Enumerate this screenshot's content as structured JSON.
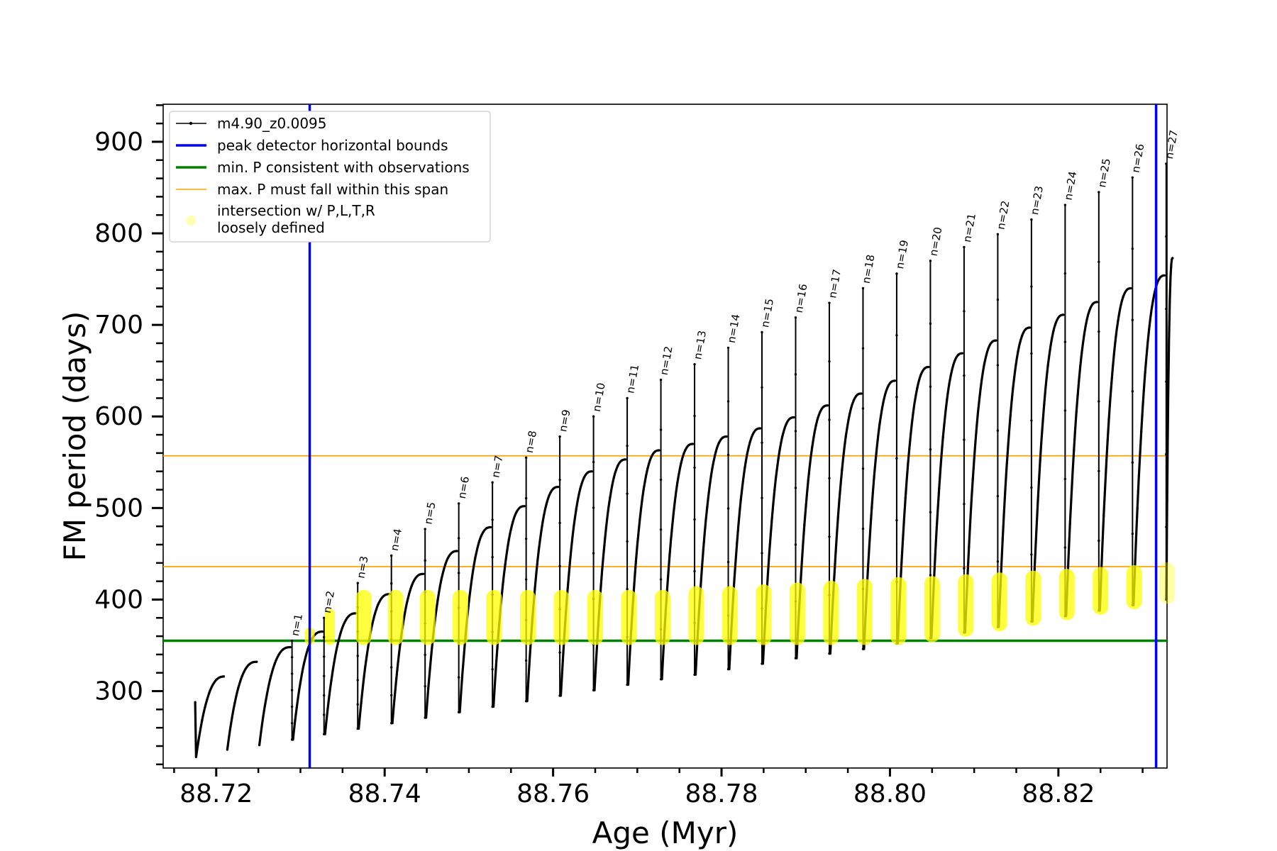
{
  "chart_data": {
    "type": "line",
    "xlabel": "Age (Myr)",
    "ylabel": "FM period (days)",
    "xlim": [
      88.7137,
      88.8329
    ],
    "ylim": [
      216,
      941
    ],
    "xticks": [
      88.72,
      88.74,
      88.76,
      88.78,
      88.8,
      88.82
    ],
    "xtick_labels": [
      "88.72",
      "88.74",
      "88.76",
      "88.78",
      "88.80",
      "88.82"
    ],
    "yticks": [
      300,
      400,
      500,
      600,
      700,
      800,
      900
    ],
    "ytick_labels": [
      "300",
      "400",
      "500",
      "600",
      "700",
      "800",
      "900"
    ],
    "legend_position": "upper-left",
    "legend": [
      {
        "label": "m4.90_z0.0095",
        "color": "#000000",
        "kind": "line-marker"
      },
      {
        "label": "peak detector horizontal bounds",
        "color": "#0000ff",
        "kind": "line"
      },
      {
        "label": "min. P consistent with observations",
        "color": "#008000",
        "kind": "line"
      },
      {
        "label": "max. P must fall within this span",
        "color": "#ffa500",
        "kind": "thin-line"
      },
      {
        "label": "intersection w/ P,L,T,R",
        "label2": "loosely defined",
        "color": "#ffff00",
        "kind": "marker"
      }
    ],
    "vertical_lines": {
      "color": "#0000ff",
      "x": [
        88.7311,
        88.8316
      ]
    },
    "min_period_line": {
      "color": "#008000",
      "y": 355
    },
    "max_period_span": {
      "color": "#ffa500",
      "y": [
        436,
        557
      ]
    },
    "curve_start": {
      "age": 88.7175,
      "period": 288
    },
    "curve_end": {
      "age": 88.8336,
      "period": 773
    },
    "series": [
      {
        "name": "m4.90_z0.0095",
        "color": "#000000",
        "pulses": [
          {
            "start": 88.7175,
            "min": 228,
            "max": 316,
            "spike": null,
            "label": ""
          },
          {
            "start": 88.7212,
            "min": 236,
            "max": 332,
            "spike": null,
            "label": ""
          },
          {
            "start": 88.725,
            "min": 241,
            "max": 348,
            "spike": null,
            "label": ""
          },
          {
            "start": 88.729,
            "min": 247,
            "max": 365,
            "spike": 355,
            "label": "n=1"
          },
          {
            "start": 88.7328,
            "min": 253,
            "max": 385,
            "spike": 380,
            "label": "n=2"
          },
          {
            "start": 88.7368,
            "min": 259,
            "max": 406,
            "spike": 418,
            "label": "n=3"
          },
          {
            "start": 88.7408,
            "min": 265,
            "max": 428,
            "spike": 448,
            "label": "n=4"
          },
          {
            "start": 88.7448,
            "min": 271,
            "max": 453,
            "spike": 477,
            "label": "n=5"
          },
          {
            "start": 88.7488,
            "min": 277,
            "max": 479,
            "spike": 505,
            "label": "n=6"
          },
          {
            "start": 88.7528,
            "min": 283,
            "max": 502,
            "spike": 528,
            "label": "n=7"
          },
          {
            "start": 88.7568,
            "min": 289,
            "max": 523,
            "spike": 555,
            "label": "n=8"
          },
          {
            "start": 88.7608,
            "min": 295,
            "max": 540,
            "spike": 578,
            "label": "n=9"
          },
          {
            "start": 88.7648,
            "min": 301,
            "max": 553,
            "spike": 600,
            "label": "n=10"
          },
          {
            "start": 88.7688,
            "min": 307,
            "max": 563,
            "spike": 620,
            "label": "n=11"
          },
          {
            "start": 88.7728,
            "min": 313,
            "max": 570,
            "spike": 640,
            "label": "n=12"
          },
          {
            "start": 88.7768,
            "min": 318,
            "max": 578,
            "spike": 657,
            "label": "n=13"
          },
          {
            "start": 88.7808,
            "min": 324,
            "max": 587,
            "spike": 675,
            "label": "n=14"
          },
          {
            "start": 88.7848,
            "min": 330,
            "max": 599,
            "spike": 692,
            "label": "n=15"
          },
          {
            "start": 88.7888,
            "min": 336,
            "max": 612,
            "spike": 708,
            "label": "n=16"
          },
          {
            "start": 88.7928,
            "min": 341,
            "max": 625,
            "spike": 724,
            "label": "n=17"
          },
          {
            "start": 88.7968,
            "min": 346,
            "max": 639,
            "spike": 740,
            "label": "n=18"
          },
          {
            "start": 88.8008,
            "min": 352,
            "max": 654,
            "spike": 756,
            "label": "n=19"
          },
          {
            "start": 88.8048,
            "min": 358,
            "max": 669,
            "spike": 770,
            "label": "n=20"
          },
          {
            "start": 88.8088,
            "min": 364,
            "max": 683,
            "spike": 785,
            "label": "n=21"
          },
          {
            "start": 88.8128,
            "min": 370,
            "max": 697,
            "spike": 799,
            "label": "n=22"
          },
          {
            "start": 88.8168,
            "min": 376,
            "max": 711,
            "spike": 815,
            "label": "n=23"
          },
          {
            "start": 88.8208,
            "min": 382,
            "max": 725,
            "spike": 831,
            "label": "n=24"
          },
          {
            "start": 88.8248,
            "min": 388,
            "max": 740,
            "spike": 845,
            "label": "n=25"
          },
          {
            "start": 88.8288,
            "min": 394,
            "max": 754,
            "spike": 861,
            "label": "n=26"
          },
          {
            "start": 88.8328,
            "min": 400,
            "max": 768,
            "spike": 876,
            "label": "n=27"
          }
        ]
      },
      {
        "name": "intersection w/ P,L,T,R loosely defined",
        "color": "#ffff00",
        "spans": [
          {
            "x": 88.7311,
            "y": [
              355,
              365
            ]
          },
          {
            "x": 88.7335,
            "y": [
              355,
              385
            ]
          },
          {
            "x": 88.7375,
            "y": [
              355,
              406
            ]
          },
          {
            "x": 88.7413,
            "y": [
              355,
              406
            ]
          },
          {
            "x": 88.7451,
            "y": [
              355,
              406
            ]
          },
          {
            "x": 88.749,
            "y": [
              355,
              406
            ]
          },
          {
            "x": 88.753,
            "y": [
              355,
              406
            ]
          },
          {
            "x": 88.757,
            "y": [
              355,
              406
            ]
          },
          {
            "x": 88.761,
            "y": [
              355,
              406
            ]
          },
          {
            "x": 88.765,
            "y": [
              355,
              406
            ]
          },
          {
            "x": 88.769,
            "y": [
              355,
              406
            ]
          },
          {
            "x": 88.773,
            "y": [
              355,
              406
            ]
          },
          {
            "x": 88.777,
            "y": [
              355,
              410
            ]
          },
          {
            "x": 88.781,
            "y": [
              355,
              410
            ]
          },
          {
            "x": 88.785,
            "y": [
              355,
              412
            ]
          },
          {
            "x": 88.789,
            "y": [
              355,
              414
            ]
          },
          {
            "x": 88.793,
            "y": [
              355,
              416
            ]
          },
          {
            "x": 88.797,
            "y": [
              355,
              418
            ]
          },
          {
            "x": 88.801,
            "y": [
              355,
              420
            ]
          },
          {
            "x": 88.805,
            "y": [
              358,
              421
            ]
          },
          {
            "x": 88.809,
            "y": [
              364,
              423
            ]
          },
          {
            "x": 88.813,
            "y": [
              370,
              425
            ]
          },
          {
            "x": 88.817,
            "y": [
              376,
              427
            ]
          },
          {
            "x": 88.821,
            "y": [
              382,
              429
            ]
          },
          {
            "x": 88.825,
            "y": [
              388,
              431
            ]
          },
          {
            "x": 88.829,
            "y": [
              394,
              433
            ]
          },
          {
            "x": 88.8329,
            "y": [
              400,
              436
            ]
          }
        ]
      }
    ]
  }
}
